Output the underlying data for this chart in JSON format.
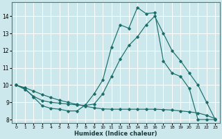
{
  "xlabel": "Humidex (Indice chaleur)",
  "bg_color": "#cce8ec",
  "line_color": "#1a6e6a",
  "grid_color": "#ffffff",
  "xlim": [
    -0.5,
    23.5
  ],
  "ylim": [
    7.8,
    14.8
  ],
  "yticks": [
    8,
    9,
    10,
    11,
    12,
    13,
    14
  ],
  "xticks": [
    0,
    1,
    2,
    3,
    4,
    5,
    6,
    7,
    8,
    9,
    10,
    11,
    12,
    13,
    14,
    15,
    16,
    17,
    18,
    19,
    20,
    21,
    22,
    23
  ],
  "line1_x": [
    0,
    1,
    2,
    3,
    4,
    5,
    6,
    7,
    8,
    9,
    10,
    11,
    12,
    13,
    14,
    15,
    16,
    17,
    18,
    19,
    20,
    21,
    22,
    23
  ],
  "line1_y": [
    10.0,
    9.8,
    9.3,
    8.8,
    8.65,
    8.6,
    8.5,
    8.5,
    8.85,
    9.5,
    10.3,
    12.2,
    13.5,
    13.3,
    14.5,
    14.15,
    14.2,
    11.4,
    10.7,
    10.5,
    9.8,
    8.0,
    8.0,
    8.0
  ],
  "line2_x": [
    0,
    1,
    2,
    3,
    4,
    5,
    6,
    7,
    8,
    9,
    10,
    11,
    12,
    13,
    14,
    15,
    16,
    17,
    18,
    19,
    20,
    21,
    22,
    23
  ],
  "line2_y": [
    10.0,
    9.75,
    9.35,
    9.1,
    9.0,
    8.95,
    8.9,
    8.85,
    8.82,
    8.9,
    9.5,
    10.5,
    11.5,
    12.3,
    12.8,
    13.5,
    14.0,
    13.0,
    12.0,
    11.4,
    10.7,
    10.0,
    9.0,
    8.0
  ],
  "line3_x": [
    0,
    1,
    2,
    3,
    4,
    5,
    6,
    7,
    8,
    9,
    10,
    11,
    12,
    13,
    14,
    15,
    16,
    17,
    18,
    19,
    20,
    21,
    22,
    23
  ],
  "line3_y": [
    10.0,
    9.85,
    9.65,
    9.45,
    9.28,
    9.12,
    9.0,
    8.88,
    8.77,
    8.68,
    8.62,
    8.6,
    8.6,
    8.6,
    8.6,
    8.6,
    8.6,
    8.58,
    8.55,
    8.5,
    8.45,
    8.38,
    8.25,
    8.05
  ]
}
